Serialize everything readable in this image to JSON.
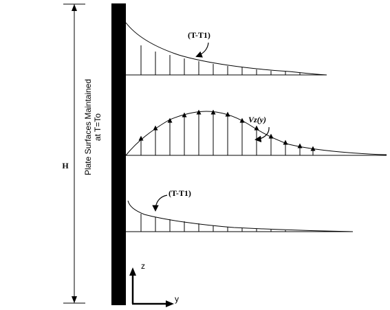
{
  "labels": {
    "height": "H",
    "plate_line1": "Plate Surfaces Maintained",
    "plate_line2": "at T=To",
    "temp_top": "(T-T1)",
    "velocity": "Vz(y)",
    "temp_bottom": "(T-T1)",
    "axis_z": "z",
    "axis_y": "y"
  },
  "colors": {
    "ink": "#000000",
    "background": "#ffffff"
  }
}
